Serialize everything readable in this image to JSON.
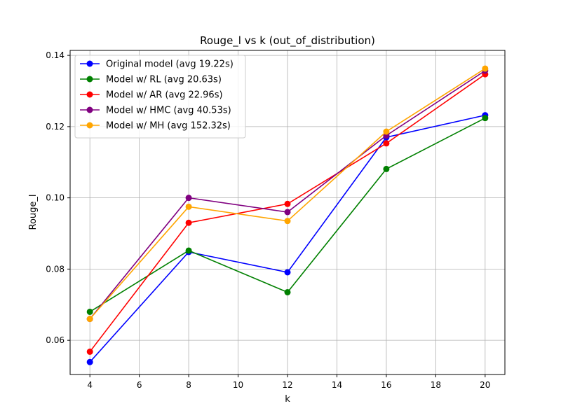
{
  "chart_data": {
    "type": "line",
    "title": "Rouge_l vs k (out_of_distribution)",
    "xlabel": "k",
    "ylabel": "Rouge_l",
    "x": [
      4,
      8,
      12,
      16,
      20
    ],
    "xlim": [
      3.2,
      20.8
    ],
    "ylim": [
      0.0504,
      0.1414
    ],
    "xticks": [
      4,
      6,
      8,
      10,
      12,
      14,
      16,
      18,
      20
    ],
    "xtick_labels": [
      "4",
      "6",
      "8",
      "10",
      "12",
      "14",
      "16",
      "18",
      "20"
    ],
    "yticks": [
      0.06,
      0.08,
      0.1,
      0.12,
      0.14
    ],
    "ytick_labels": [
      "0.06",
      "0.08",
      "0.10",
      "0.12",
      "0.14"
    ],
    "grid": true,
    "legend_position": "top-left",
    "series": [
      {
        "name": "Original model (avg 19.22s)",
        "color": "#0000ff",
        "values": [
          0.0539,
          0.0848,
          0.0791,
          0.117,
          0.1232
        ]
      },
      {
        "name": "Model w/ RL (avg 20.63s)",
        "color": "#008000",
        "values": [
          0.068,
          0.0852,
          0.0735,
          0.1081,
          0.1224
        ]
      },
      {
        "name": "Model w/ AR (avg 22.96s)",
        "color": "#ff0000",
        "values": [
          0.0568,
          0.093,
          0.0983,
          0.1153,
          0.1347
        ]
      },
      {
        "name": "Model w/ HMC (avg 40.53s)",
        "color": "#800080",
        "values": [
          0.066,
          0.1,
          0.096,
          0.1175,
          0.1357
        ]
      },
      {
        "name": "Model w/ MH (avg 152.32s)",
        "color": "#ffa500",
        "values": [
          0.066,
          0.0975,
          0.0935,
          0.1186,
          0.1363
        ]
      }
    ]
  }
}
